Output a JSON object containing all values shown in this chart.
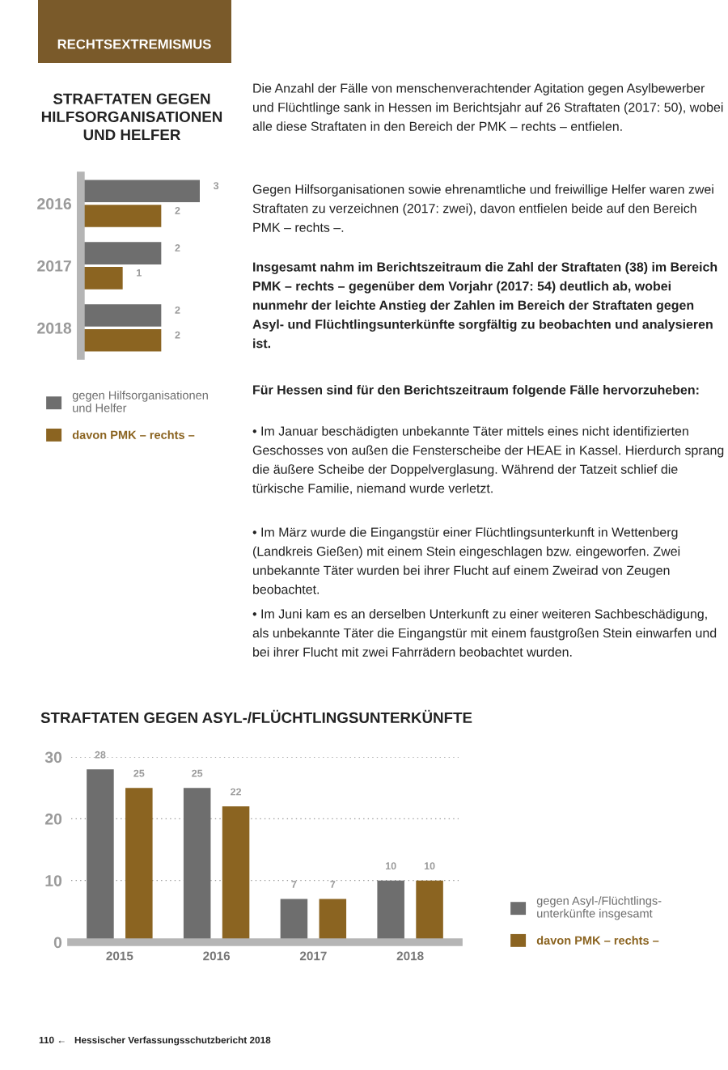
{
  "chart_data": [
    {
      "type": "other",
      "annotations": [
        "RECHTSEXTREMISMUS"
      ]
    },
    {
      "type": "bar",
      "title": "STRAFTATEN GEGEN\nHILFSORGANISATIONEN\nUND HELFER",
      "orientation": "horizontal",
      "categories": [
        "2016",
        "2017",
        "2018"
      ],
      "series": [
        {
          "name": "gegen Hilfsorganisationen\nund Helfer",
          "color": "#6e6e6e",
          "values": [
            3,
            2,
            2
          ]
        },
        {
          "name": "davon PMK – rechts –",
          "color": "#8b6421",
          "values": [
            2,
            1,
            2
          ]
        }
      ],
      "data_labels": true,
      "tick_labels": "y",
      "grid": false,
      "legend": "bottom"
    },
    {
      "type": "other",
      "annotations": [
        "Die Anzahl der Fälle von menschenverachtender Agitation gegen Asylbewerber und Flüchtlinge sank in Hessen im Berichtsjahr auf 26 Straftaten (2017: 50), wobei alle diese Straftaten in den Bereich der PMK – rechts – entfielen.",
        "Gegen Hilfsorganisationen sowie ehrenamtliche und freiwillige Helfer waren zwei Straftaten zu verzeichnen (2017: zwei), davon entfielen beide auf den Bereich PMK – rechts –.",
        "Insgesamt nahm im Berichtszeitraum die Zahl der Straftaten (38) im Bereich PMK – rechts – gegenüber dem Vorjahr (2017: 54) deutlich ab, wobei nunmehr der leichte Anstieg der Zahlen im Bereich der Straftaten gegen Asyl- und Flüchtlingsunterkünfte sorgfältig zu beobachten und analysieren ist.",
        "Für Hessen sind für den Berichtszeitraum folgende Fälle hervorzuheben:",
        "• Im Januar beschädigten unbekannte Täter mittels eines nicht identifizierten Geschosses von außen die Fensterscheibe der HEAE in Kassel. Hierdurch sprang die äußere Scheibe der Doppelverglasung. Während der Tatzeit schlief die türkische Familie, niemand wurde verletzt.",
        "• Im März wurde die Eingangstür einer Flüchtlingsunterkunft in Wettenberg (Landkreis Gießen) mit einem Stein eingeschlagen bzw. eingeworfen. Zwei unbekannte Täter wurden bei ihrer Flucht auf einem Zweirad von Zeugen beobachtet.",
        "• Im Juni kam es an derselben Unterkunft zu einer weiteren Sachbeschädigung, als unbekannte Täter die Eingangstür mit einem faustgroßen Stein einwarfen und bei ihrer Flucht mit zwei Fahrrädern beobachtet wurden."
      ]
    },
    {
      "type": "bar",
      "title": "STRAFTATEN GEGEN ASYL-/FLÜCHTLINGSUNTERKÜNFTE",
      "categories": [
        "2015",
        "2016",
        "2017",
        "2018"
      ],
      "series": [
        {
          "name": "gegen Asyl-/Flüchtlings-\nunterkünfte insgesamt",
          "color": "#6e6e6e",
          "values": [
            28,
            25,
            7,
            10
          ]
        },
        {
          "name": "davon PMK – rechts –",
          "color": "#8b6421",
          "values": [
            25,
            22,
            7,
            10
          ]
        }
      ],
      "ylim": [
        0,
        30
      ],
      "yticks": [
        0,
        10,
        20,
        30
      ],
      "data_labels": true,
      "grid": "y",
      "legend": "right"
    },
    {
      "type": "other",
      "annotations": [
        "110 ←   Hessischer Verfassungsschutzbericht 2018"
      ]
    }
  ]
}
